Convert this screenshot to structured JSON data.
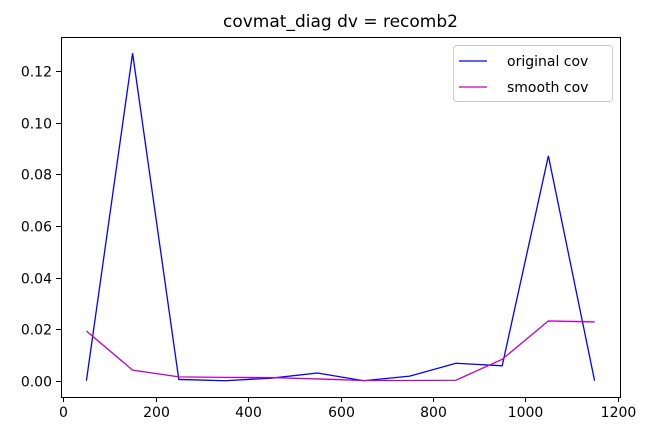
{
  "chart_data": {
    "type": "line",
    "title": "covmat_diag dv = recomb2",
    "xlabel": "",
    "ylabel": "",
    "xlim": [
      -5,
      1205
    ],
    "ylim": [
      -0.0063,
      0.1333
    ],
    "xticks": [
      0,
      200,
      400,
      600,
      800,
      1000,
      1200
    ],
    "xtick_labels": [
      "0",
      "200",
      "400",
      "600",
      "800",
      "1000",
      "1200"
    ],
    "yticks": [
      0.0,
      0.02,
      0.04,
      0.06,
      0.08,
      0.1,
      0.12
    ],
    "ytick_labels": [
      "0.00",
      "0.02",
      "0.04",
      "0.06",
      "0.08",
      "0.10",
      "0.12"
    ],
    "grid": false,
    "legend_position": "top-right",
    "x": [
      50,
      150,
      250,
      350,
      450,
      550,
      650,
      750,
      850,
      950,
      1050,
      1150
    ],
    "series": [
      {
        "name": "original cov",
        "color": "#0000ff",
        "values": [
          0.0,
          0.127,
          0.0005,
          0.0,
          0.001,
          0.003,
          0.0,
          0.0018,
          0.0068,
          0.0058,
          0.0872,
          0.0
        ]
      },
      {
        "name": "smooth cov",
        "color": "#bf00bf",
        "values": [
          0.0193,
          0.0041,
          0.0015,
          0.0013,
          0.0012,
          0.0007,
          0.0001,
          0.0001,
          0.0002,
          0.0083,
          0.0232,
          0.0228
        ]
      }
    ]
  }
}
